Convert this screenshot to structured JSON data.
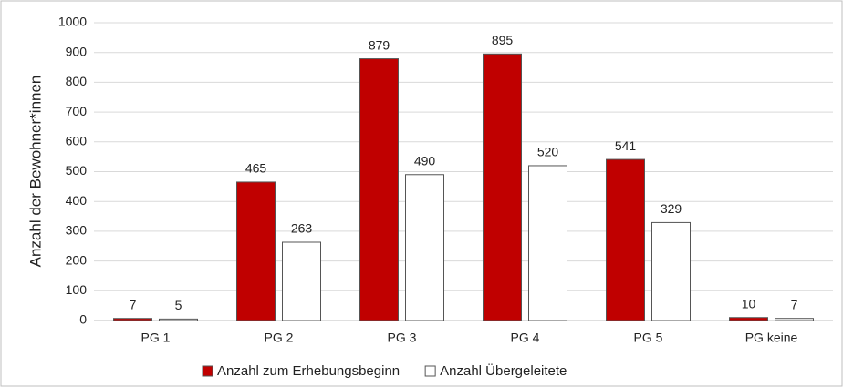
{
  "chart_data": {
    "type": "bar",
    "y_label": "Anzahl der Bewohner*innen",
    "categories": [
      "PG 1",
      "PG 2",
      "PG 3",
      "PG 4",
      "PG 5",
      "PG keine"
    ],
    "series": [
      {
        "name": "Anzahl zum Erhebungsbeginn",
        "color": "#c00000",
        "values": [
          7,
          465,
          879,
          895,
          541,
          10
        ]
      },
      {
        "name": "Anzahl Übergeleitete",
        "color": "#ffffff",
        "values": [
          5,
          263,
          490,
          520,
          329,
          7
        ]
      }
    ],
    "ylim": [
      0,
      1000
    ],
    "yticks": [
      0,
      100,
      200,
      300,
      400,
      500,
      600,
      700,
      800,
      900,
      1000
    ],
    "grid": true,
    "legend": "bottom"
  }
}
